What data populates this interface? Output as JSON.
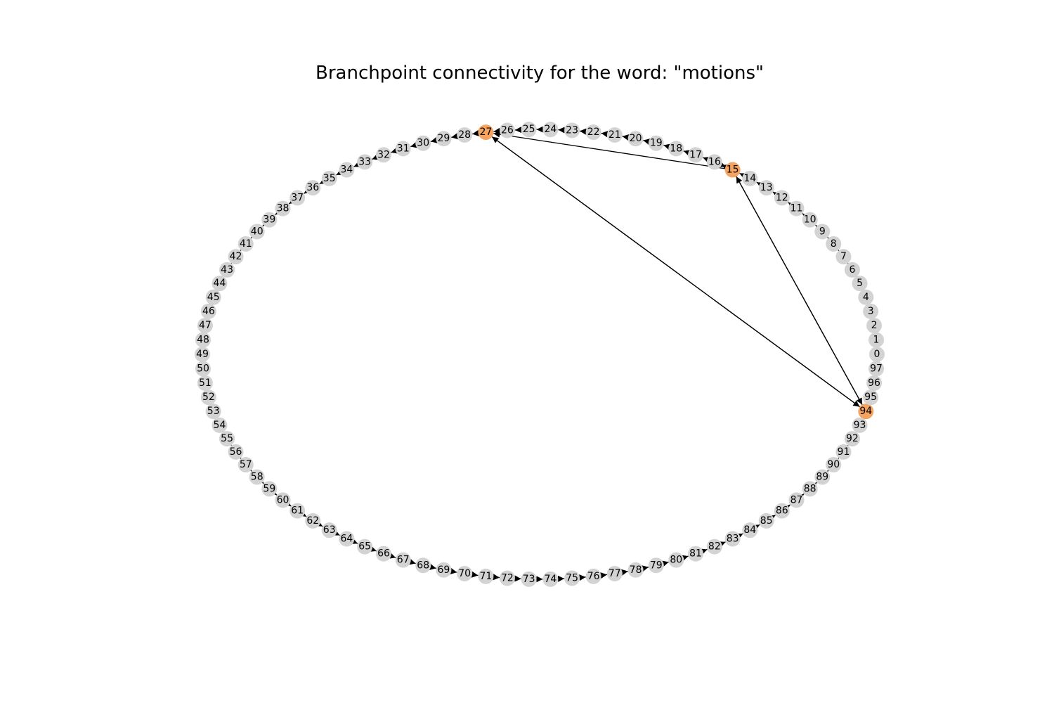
{
  "title": "Branchpoint connectivity for the word: \"motions\"",
  "colors": {
    "node_default": "#d3d3d3",
    "node_branchpoint": "#f4a460",
    "edge": "#000000",
    "background": "#ffffff"
  },
  "graph": {
    "node_count": 98,
    "order": [
      0,
      1,
      2,
      3,
      4,
      5,
      6,
      7,
      8,
      9,
      10,
      11,
      12,
      13,
      14,
      15,
      16,
      17,
      18,
      19,
      20,
      21,
      22,
      23,
      24,
      25,
      26,
      27,
      28,
      29,
      30,
      31,
      32,
      33,
      34,
      35,
      36,
      37,
      38,
      39,
      40,
      41,
      42,
      43,
      44,
      45,
      46,
      47,
      48,
      49,
      50,
      51,
      52,
      53,
      54,
      55,
      56,
      57,
      58,
      59,
      60,
      61,
      62,
      63,
      64,
      65,
      66,
      67,
      68,
      69,
      70,
      71,
      72,
      73,
      74,
      75,
      76,
      77,
      78,
      79,
      80,
      81,
      82,
      83,
      84,
      85,
      86,
      87,
      88,
      89,
      90,
      91,
      92,
      93,
      94,
      95,
      96,
      97
    ],
    "branchpoints": [
      15,
      27,
      94
    ],
    "sequential_edges": "i -> i+1",
    "extra_edges": [
      {
        "from": 16,
        "to": 15
      },
      {
        "from": 15,
        "to": 27
      },
      {
        "from": 27,
        "to": 94
      },
      {
        "from": 94,
        "to": 27
      },
      {
        "from": 15,
        "to": 94
      },
      {
        "from": 94,
        "to": 15
      }
    ]
  }
}
